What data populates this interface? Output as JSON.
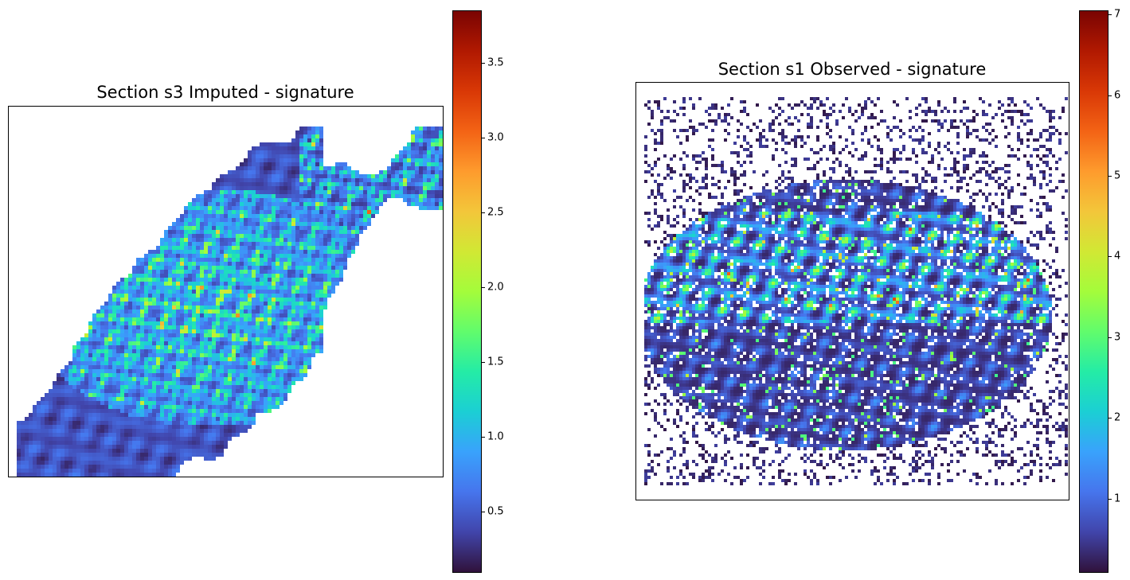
{
  "chart_data": [
    {
      "type": "heatmap",
      "title": "Section s3 Imputed - signature",
      "xlabel": "",
      "ylabel": "",
      "colormap": "turbo",
      "colorbar": {
        "min": 0.1,
        "max": 3.85,
        "ticks": [
          0.5,
          1.0,
          1.5,
          2.0,
          2.5,
          3.0,
          3.5
        ],
        "tick_labels": [
          "0.5",
          "1.0",
          "1.5",
          "2.0",
          "2.5",
          "3.0",
          "3.5"
        ]
      },
      "axes_ticks_shown": false
    },
    {
      "type": "heatmap",
      "title": "Section s1 Observed - signature",
      "xlabel": "",
      "ylabel": "",
      "colormap": "turbo",
      "colorbar": {
        "min": 0.1,
        "max": 7.05,
        "ticks": [
          1,
          2,
          3,
          4,
          5,
          6,
          7
        ],
        "tick_labels": [
          "1",
          "2",
          "3",
          "4",
          "5",
          "6",
          "7"
        ]
      },
      "axes_ticks_shown": false
    }
  ],
  "colors": {
    "turbo_stops": [
      "#30123b",
      "#4145ab",
      "#4675ed",
      "#39a2fc",
      "#1bcfd4",
      "#24eca6",
      "#61fc6c",
      "#a4fc3b",
      "#d1e834",
      "#f3c63a",
      "#fe9b2d",
      "#f36315",
      "#d93806",
      "#b11901",
      "#7a0402"
    ]
  }
}
